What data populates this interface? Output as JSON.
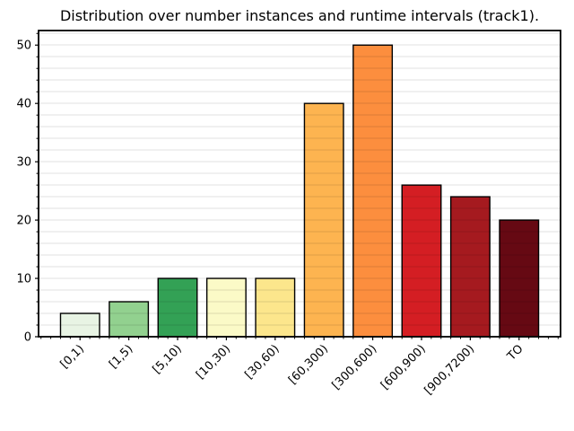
{
  "chart_data": {
    "type": "bar",
    "title": "Distribution over number instances and runtime intervals (track1).",
    "categories": [
      "[0,1)",
      "[1,5)",
      "[5,10)",
      "[10,30)",
      "[30,60)",
      "[60,300)",
      "[300,600)",
      "[600,900)",
      "[900,7200)",
      "TO"
    ],
    "values": [
      4,
      6,
      10,
      10,
      10,
      40,
      50,
      26,
      24,
      20
    ],
    "bar_colors": [
      "#e8f4e4",
      "#92d18f",
      "#33a155",
      "#fbfac7",
      "#fce68c",
      "#fdb450",
      "#fc8e3e",
      "#d41e23",
      "#a51a1f",
      "#660913"
    ],
    "bar_edge_color": "#000000",
    "xlabel": "",
    "ylabel": "",
    "ylim": [
      0,
      52.5
    ],
    "yticks": [
      0,
      10,
      20,
      30,
      40,
      50
    ],
    "minor_grid_step": 2,
    "x_minor_step": 0.2,
    "grid": "on",
    "grid_over_bars": true,
    "background": "#ffffff",
    "tick_label_rotation_deg": 45,
    "legend": "none"
  }
}
